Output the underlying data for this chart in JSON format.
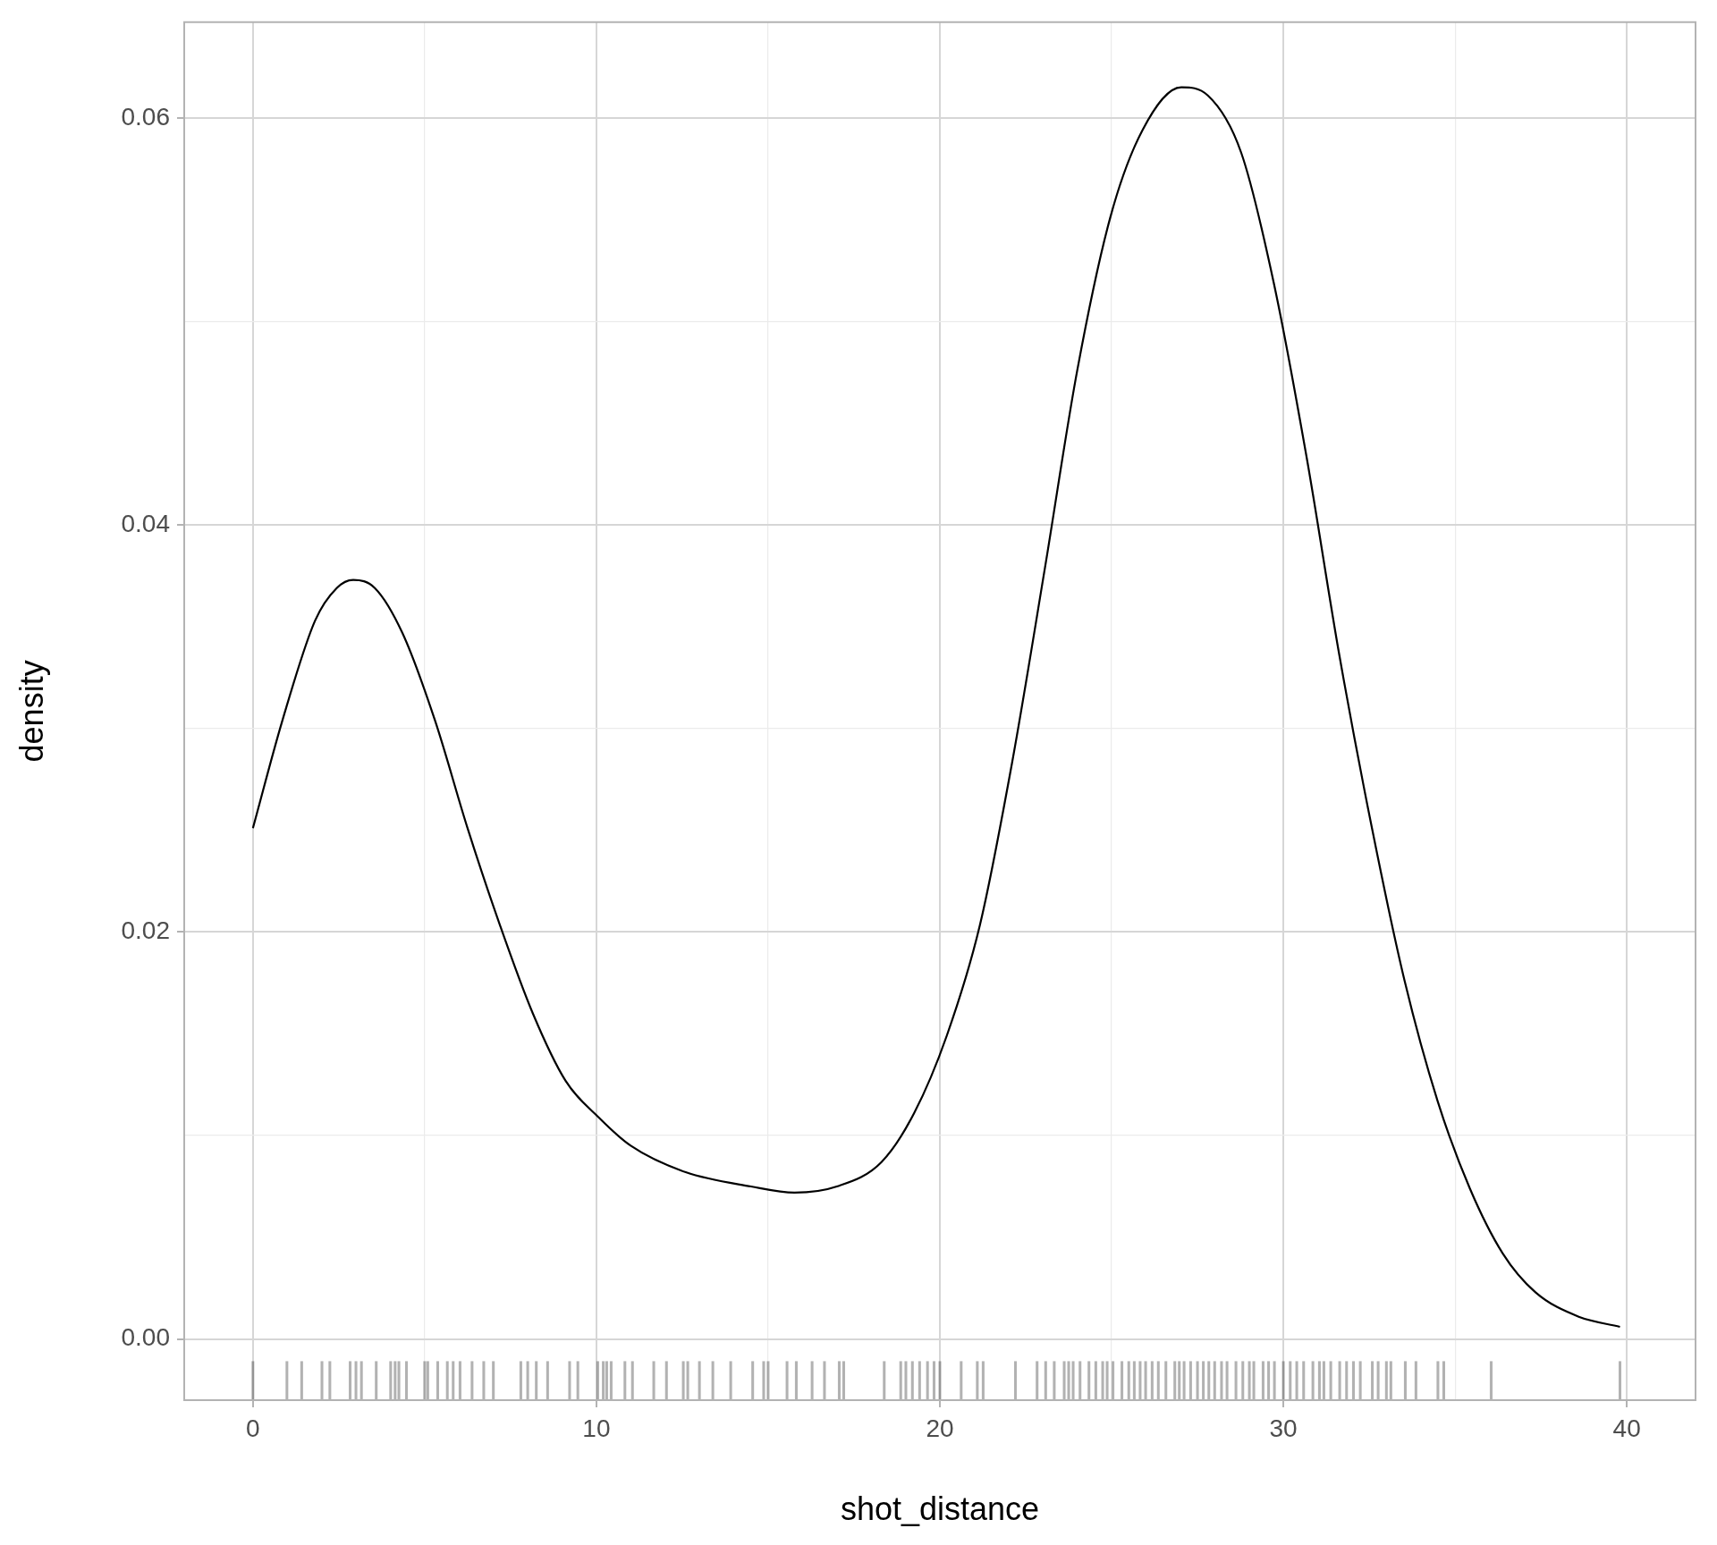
{
  "chart_data": {
    "type": "line",
    "xlabel": "shot_distance",
    "ylabel": "density",
    "xlim": [
      -2,
      42
    ],
    "ylim": [
      -0.003,
      0.0647
    ],
    "xticks": [
      0,
      {
        "value": 5,
        "label": null
      },
      10,
      {
        "value": 15,
        "label": null
      },
      20,
      {
        "value": 25,
        "label": null
      },
      30,
      {
        "value": 35,
        "label": null
      },
      40
    ],
    "yticks": [
      {
        "value": 0,
        "label": "0.00"
      },
      {
        "value": 0.01,
        "label": null
      },
      {
        "value": 0.02,
        "label": "0.02"
      },
      {
        "value": 0.03,
        "label": null
      },
      {
        "value": 0.04,
        "label": "0.04"
      },
      {
        "value": 0.05,
        "label": null
      },
      {
        "value": 0.06,
        "label": "0.06"
      }
    ],
    "grid": true,
    "legend": false,
    "series": [
      {
        "color": "#000000",
        "x": [
          0,
          0.86,
          1.81,
          2.44,
          2.92,
          3.55,
          4.35,
          5.3,
          6.25,
          7.2,
          8.15,
          9.1,
          10.06,
          11.0,
          12.6,
          14.5,
          15.77,
          17.0,
          18.3,
          19.25,
          20.2,
          21.16,
          22.1,
          23.06,
          24.0,
          24.96,
          25.9,
          27.03,
          27.8,
          28.77,
          29.72,
          30.68,
          31.63,
          32.58,
          33.53,
          34.49,
          35.43,
          36.39,
          37.34,
          38.6,
          39.8
        ],
        "values": [
          0.0251,
          0.0304,
          0.0353,
          0.0369,
          0.0373,
          0.0369,
          0.0347,
          0.0304,
          0.0251,
          0.0203,
          0.016,
          0.0127,
          0.0109,
          0.0095,
          0.0082,
          0.0075,
          0.0072,
          0.0075,
          0.0087,
          0.0111,
          0.0149,
          0.0203,
          0.0283,
          0.0379,
          0.0476,
          0.0551,
          0.0594,
          0.0615,
          0.0611,
          0.0583,
          0.0519,
          0.0433,
          0.0336,
          0.0251,
          0.0176,
          0.0117,
          0.0074,
          0.0042,
          0.0023,
          0.0011,
          0.0006
        ]
      },
      {
        "type": "bar",
        "color": "#000000",
        "base": [
          -0.003,
          -0.003,
          -0.003,
          -0.003,
          -0.003,
          -0.003,
          -0.003,
          -0.003,
          -0.003,
          -0.003,
          -0.003,
          -0.003,
          -0.003,
          -0.003,
          -0.003,
          -0.003,
          -0.003,
          -0.003,
          -0.003,
          -0.003,
          -0.003,
          -0.003,
          -0.003,
          -0.003,
          -0.003,
          -0.003,
          -0.003,
          -0.003,
          -0.003,
          -0.003,
          -0.003,
          -0.003,
          -0.003,
          -0.003,
          -0.003,
          -0.003,
          -0.003,
          -0.003,
          -0.003,
          -0.003,
          -0.003,
          -0.003,
          -0.003,
          -0.003,
          -0.003,
          -0.003,
          -0.003,
          -0.003,
          -0.003,
          -0.003,
          -0.003,
          -0.003,
          -0.003,
          -0.003,
          -0.003,
          -0.003,
          -0.003,
          -0.003,
          -0.003,
          -0.003,
          -0.003,
          -0.003,
          -0.003,
          -0.003,
          -0.003,
          -0.003,
          -0.003,
          -0.003,
          -0.003,
          -0.003,
          -0.003,
          -0.003,
          -0.003,
          -0.003,
          -0.003,
          -0.003,
          -0.003,
          -0.003,
          -0.003,
          -0.003,
          -0.003,
          -0.003,
          -0.003,
          -0.003,
          -0.003,
          -0.003,
          -0.003,
          -0.003,
          -0.003,
          -0.003,
          -0.003,
          -0.003,
          -0.003,
          -0.003,
          -0.003,
          -0.003,
          -0.003,
          -0.003,
          -0.003,
          -0.003,
          -0.003,
          -0.003,
          -0.003,
          -0.003,
          -0.003,
          -0.003,
          -0.003,
          -0.003,
          -0.003,
          -0.003,
          -0.003,
          -0.003,
          -0.003,
          -0.003,
          -0.003,
          -0.003,
          -0.003,
          -0.003,
          -0.003,
          -0.003,
          -0.003
        ],
        "x": [
          0,
          0.99,
          1.42,
          2.01,
          2.24,
          2.83,
          3.0,
          3.16,
          3.59,
          4.01,
          4.14,
          4.25,
          4.47,
          5.0,
          5.09,
          5.38,
          5.66,
          5.83,
          6.03,
          6.38,
          6.72,
          7.0,
          7.8,
          8.0,
          8.25,
          8.58,
          9.22,
          9.46,
          10.04,
          10.2,
          10.3,
          10.43,
          10.83,
          11.05,
          11.67,
          12.04,
          12.53,
          12.66,
          13.0,
          13.39,
          13.91,
          14.55,
          14.87,
          15.0,
          15.55,
          15.82,
          16.28,
          16.64,
          17.07,
          17.2,
          18.38,
          18.86,
          19.01,
          19.2,
          19.41,
          19.64,
          19.83,
          20.0,
          20.62,
          21.09,
          21.26,
          22.2,
          22.83,
          23.08,
          23.33,
          23.62,
          23.75,
          23.88,
          24.08,
          24.34,
          24.54,
          24.74,
          24.87,
          25.04,
          25.3,
          25.5,
          25.66,
          25.83,
          25.99,
          26.18,
          26.36,
          26.58,
          26.84,
          26.97,
          27.11,
          27.3,
          27.5,
          27.67,
          27.83,
          28.0,
          28.2,
          28.36,
          28.62,
          28.82,
          29.01,
          29.14,
          29.41,
          29.57,
          29.74,
          30.0,
          30.2,
          30.39,
          30.59,
          30.86,
          31.05,
          31.18,
          31.38,
          31.64,
          31.84,
          32.04,
          32.24,
          32.59,
          32.76,
          33.0,
          33.13,
          33.55,
          33.86,
          34.5,
          34.67,
          36.05,
          39.8
        ],
        "values": [
          0.0019,
          0.0019,
          0.0019,
          0.0019,
          0.0019,
          0.0019,
          0.0019,
          0.0019,
          0.0019,
          0.0019,
          0.0019,
          0.0019,
          0.0019,
          0.0019,
          0.0019,
          0.0019,
          0.0019,
          0.0019,
          0.0019,
          0.0019,
          0.0019,
          0.0019,
          0.0019,
          0.0019,
          0.0019,
          0.0019,
          0.0019,
          0.0019,
          0.0019,
          0.0019,
          0.0019,
          0.0019,
          0.0019,
          0.0019,
          0.0019,
          0.0019,
          0.0019,
          0.0019,
          0.0019,
          0.0019,
          0.0019,
          0.0019,
          0.0019,
          0.0019,
          0.0019,
          0.0019,
          0.0019,
          0.0019,
          0.0019,
          0.0019,
          0.0019,
          0.0019,
          0.0019,
          0.0019,
          0.0019,
          0.0019,
          0.0019,
          0.0019,
          0.0019,
          0.0019,
          0.0019,
          0.0019,
          0.0019,
          0.0019,
          0.0019,
          0.0019,
          0.0019,
          0.0019,
          0.0019,
          0.0019,
          0.0019,
          0.0019,
          0.0019,
          0.0019,
          0.0019,
          0.0019,
          0.0019,
          0.0019,
          0.0019,
          0.0019,
          0.0019,
          0.0019,
          0.0019,
          0.0019,
          0.0019,
          0.0019,
          0.0019,
          0.0019,
          0.0019,
          0.0019,
          0.0019,
          0.0019,
          0.0019,
          0.0019,
          0.0019,
          0.0019,
          0.0019,
          0.0019,
          0.0019,
          0.0019,
          0.0019,
          0.0019,
          0.0019,
          0.0019,
          0.0019,
          0.0019,
          0.0019,
          0.0019,
          0.0019,
          0.0019,
          0.0019,
          0.0019,
          0.0019,
          0.0019,
          0.0019,
          0.0019,
          0.0019,
          0.0019,
          0.0019,
          0.0019,
          0.0019
        ]
      }
    ]
  }
}
